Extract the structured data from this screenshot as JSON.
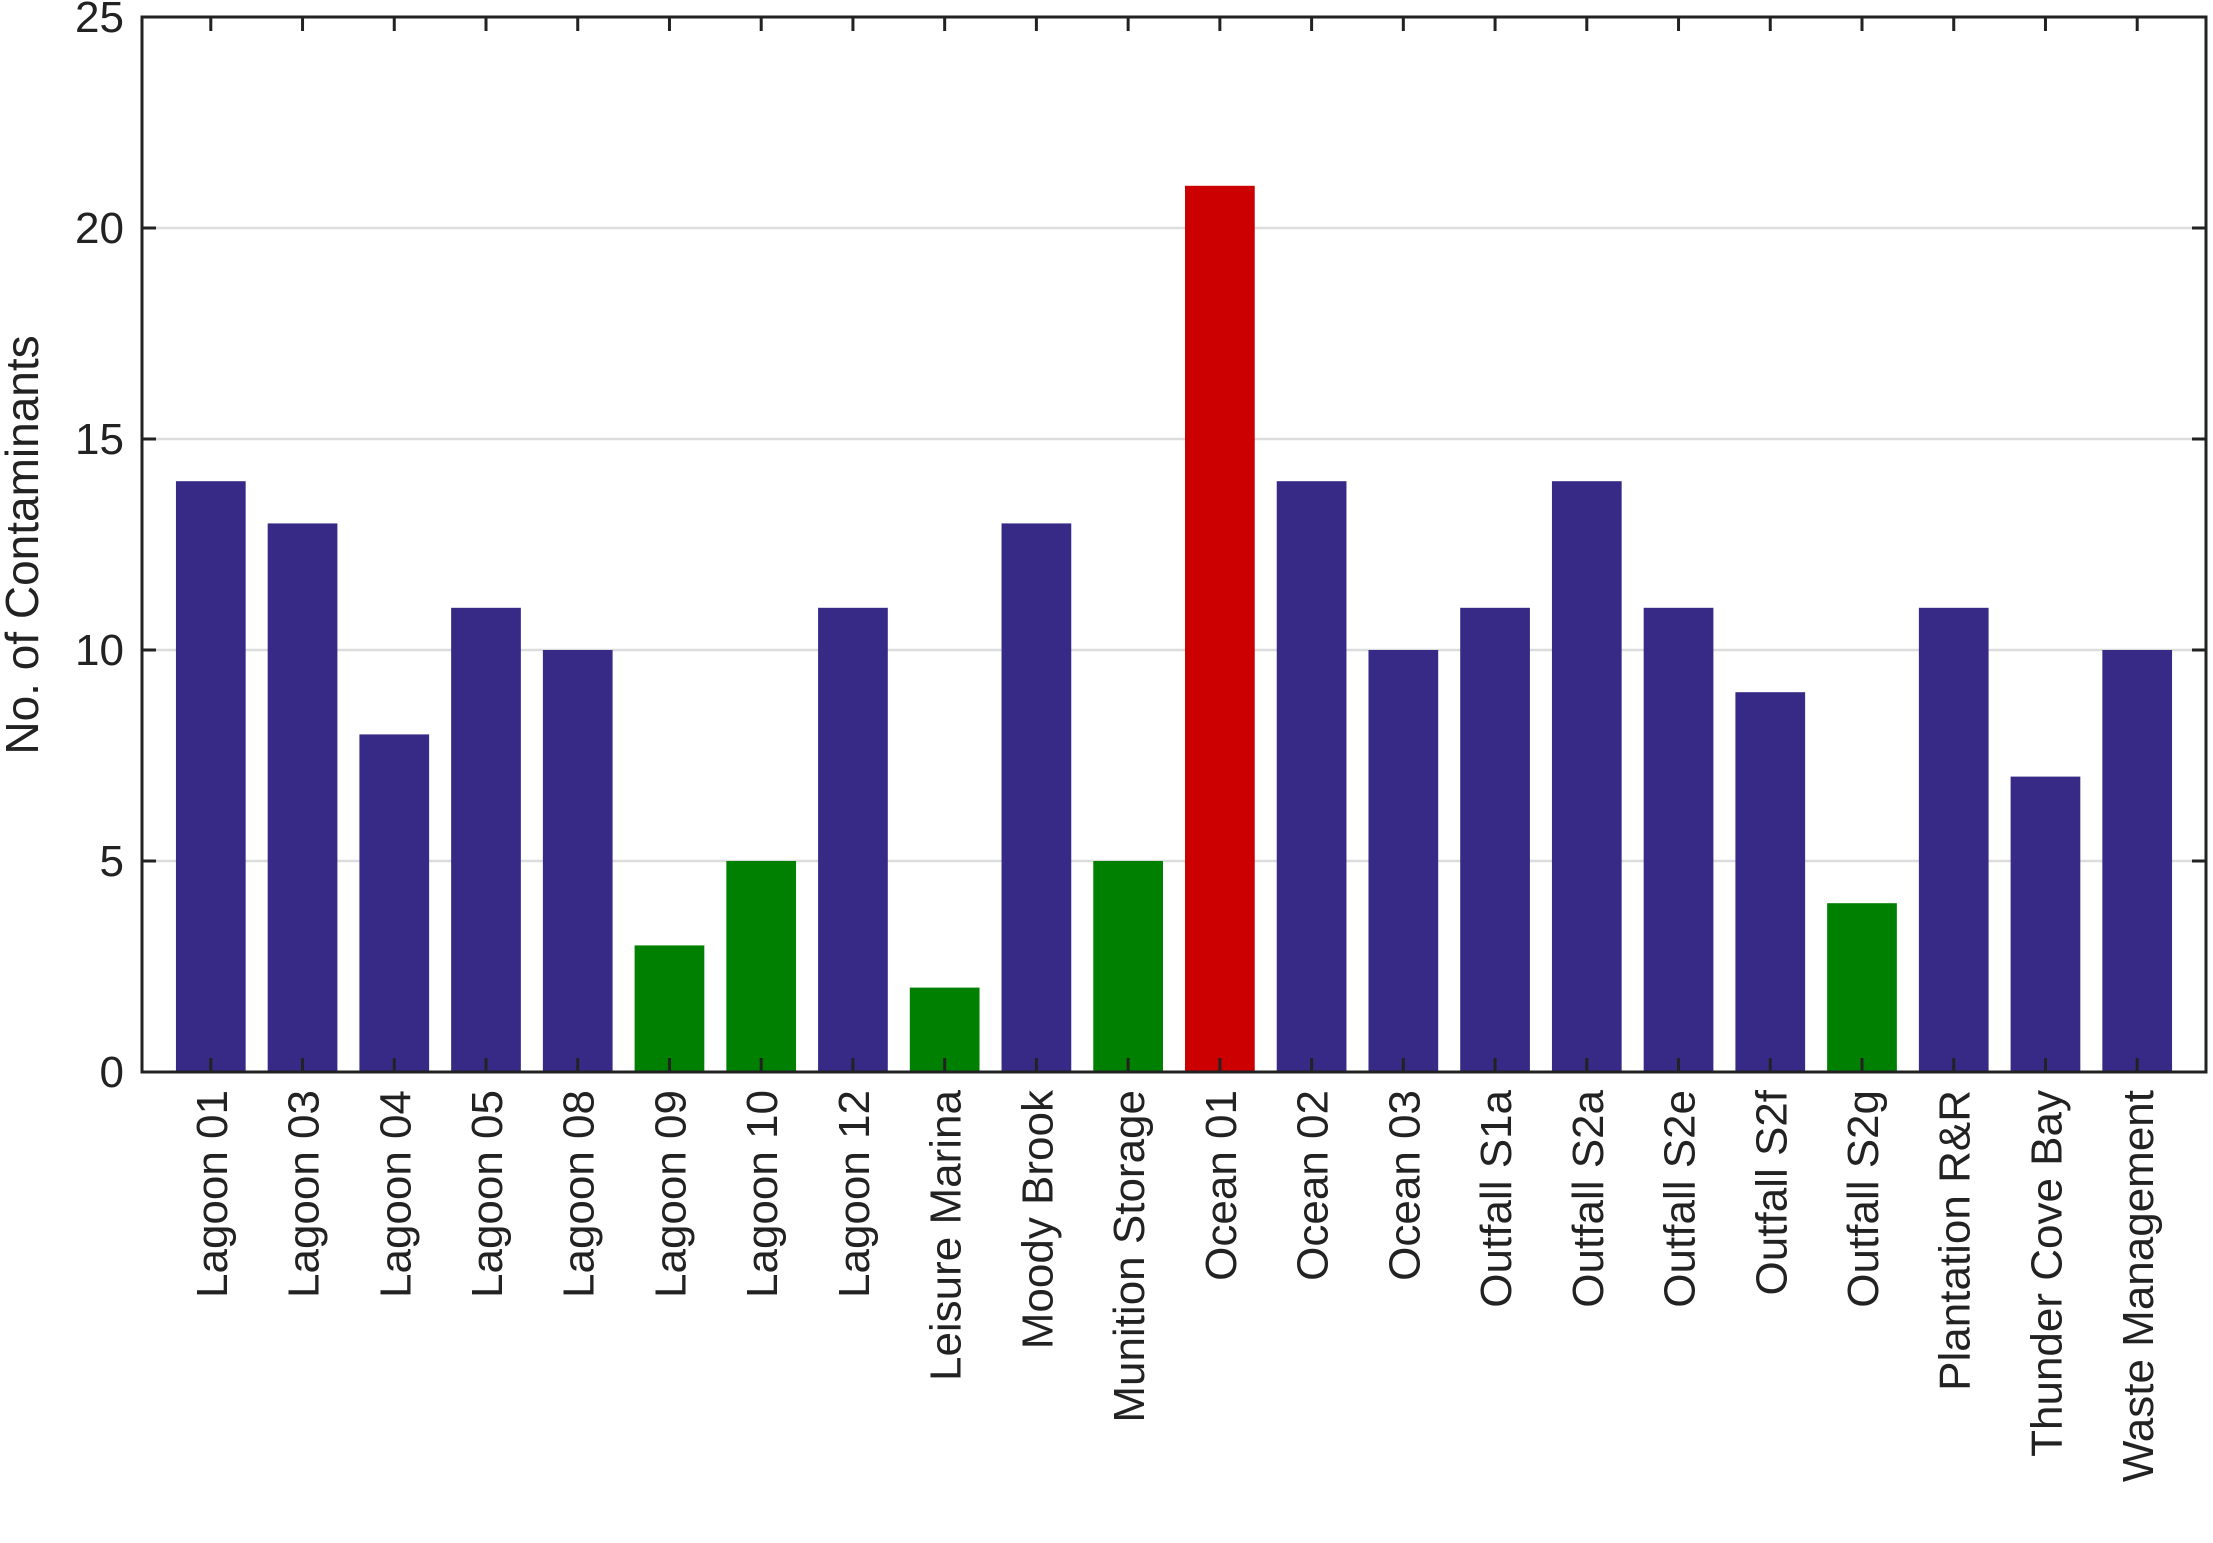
{
  "chart_data": {
    "type": "bar",
    "title": "",
    "xlabel": "",
    "ylabel": "No. of Contaminants",
    "ylim": [
      0,
      25
    ],
    "yticks": [
      0,
      5,
      10,
      15,
      20,
      25
    ],
    "grid": "horizontal",
    "categories": [
      "Lagoon 01",
      "Lagoon 03",
      "Lagoon 04",
      "Lagoon 05",
      "Lagoon 08",
      "Lagoon 09",
      "Lagoon 10",
      "Lagoon 12",
      "Leisure Marina",
      "Moody Brook",
      "Munition Storage",
      "Ocean 01",
      "Ocean 02",
      "Ocean 03",
      "Outfall S1a",
      "Outfall S2a",
      "Outfall S2e",
      "Outfall S2f",
      "Outfall S2g",
      "Plantation R&R",
      "Thunder Cove Bay",
      "Waste Management"
    ],
    "values": [
      14,
      13,
      8,
      11,
      10,
      3,
      5,
      11,
      2,
      13,
      5,
      21,
      14,
      10,
      11,
      14,
      11,
      9,
      4,
      11,
      7,
      10
    ],
    "bar_colors": [
      "#372a87",
      "#372a87",
      "#372a87",
      "#372a87",
      "#372a87",
      "#008000",
      "#008000",
      "#372a87",
      "#008000",
      "#372a87",
      "#008000",
      "#cc0000",
      "#372a87",
      "#372a87",
      "#372a87",
      "#372a87",
      "#372a87",
      "#372a87",
      "#008000",
      "#372a87",
      "#372a87",
      "#372a87"
    ],
    "colors": {
      "default": "#372a87",
      "low": "#008000",
      "high": "#cc0000",
      "grid": "#dcdcdc",
      "axis": "#222222"
    }
  }
}
